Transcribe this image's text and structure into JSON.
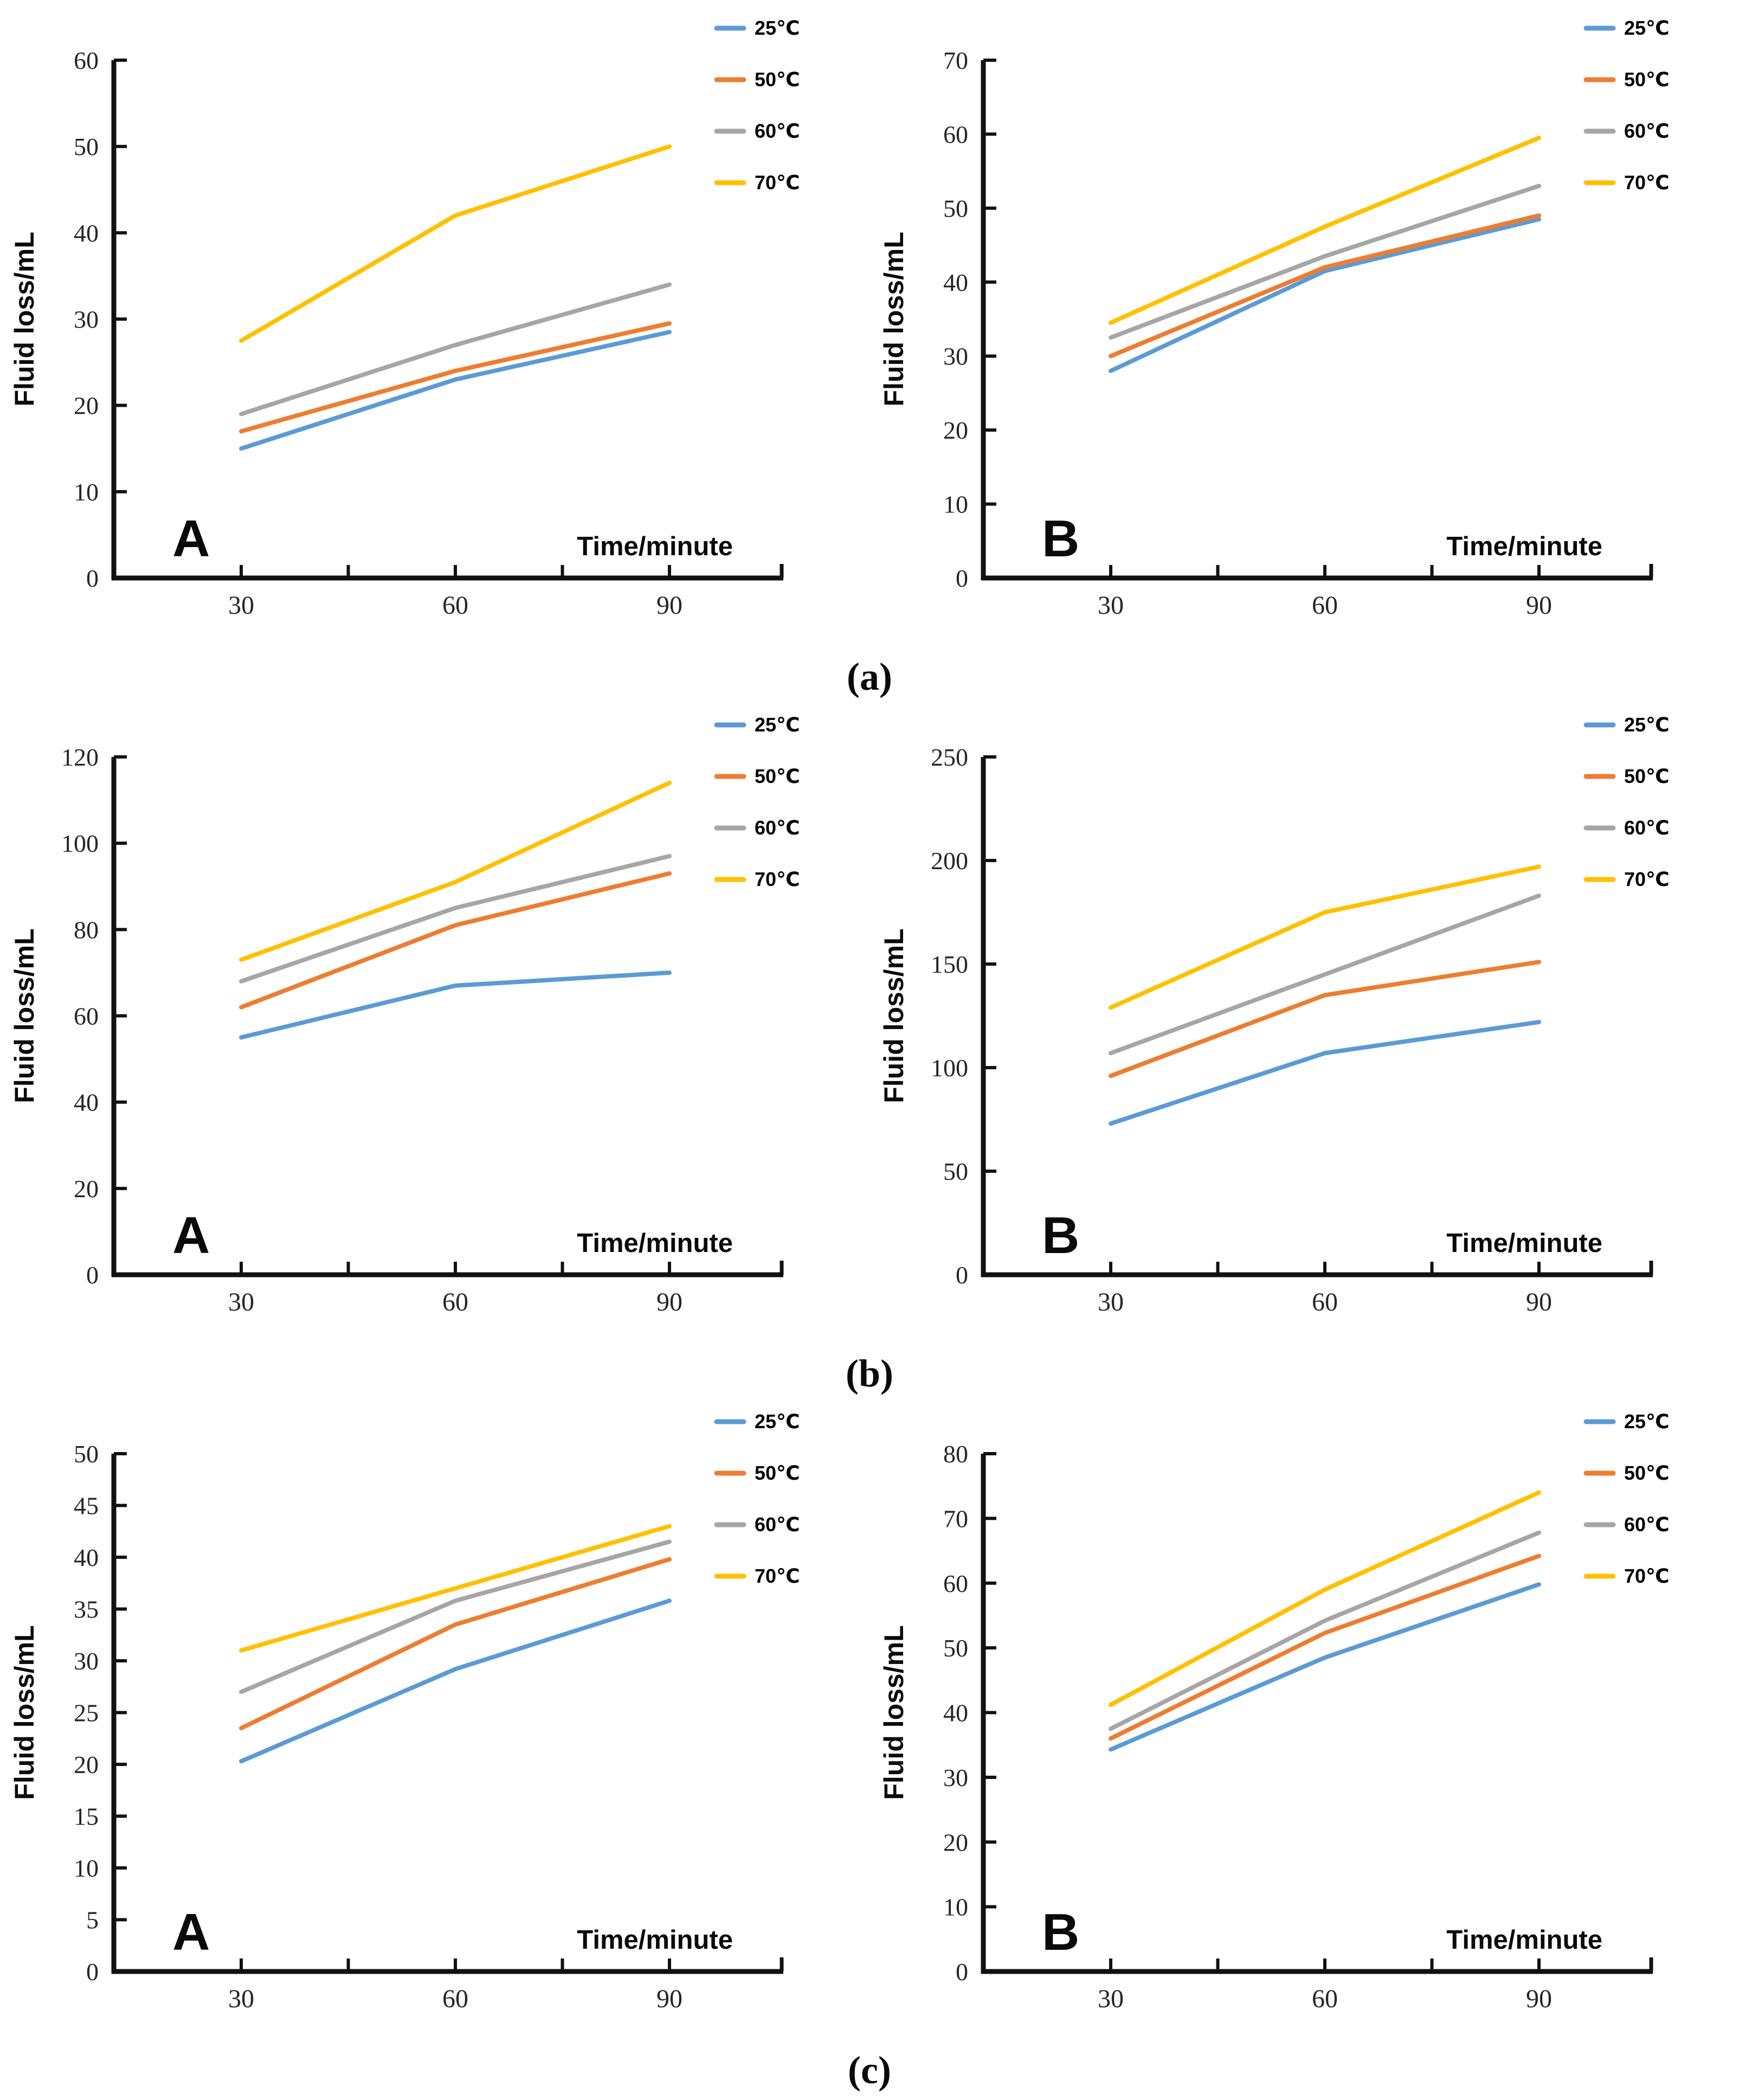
{
  "y_axis_title": "Fluid loss/mL",
  "x_axis_title": "Time/minute",
  "captions": [
    "(a)",
    "(b)",
    "(c)"
  ],
  "colors": {
    "c25": "#5B9BD5",
    "c50": "#ED7D31",
    "c60": "#A6A6A6",
    "c70": "#FFC000",
    "axis": "#111111",
    "tick_text": "#262626",
    "title_text": "#0a0a0a"
  },
  "legend_labels": [
    "25℃",
    "50℃",
    "60℃",
    "70℃"
  ],
  "x_tick_positions": [
    30,
    45,
    60,
    75,
    90
  ],
  "x_tick_labels": [
    30,
    60,
    90
  ],
  "chart_data": [
    {
      "id": "a-A",
      "row": "a",
      "panel_letter": "A",
      "type": "line",
      "x": [
        30,
        60,
        90
      ],
      "xlabel": "Time/minute",
      "ylabel": "Fluid loss/mL",
      "ylim": [
        0,
        60
      ],
      "ystep": 10,
      "grid": false,
      "legend_position": "top-right",
      "series": [
        {
          "name": "25℃",
          "color": "#5B9BD5",
          "values": [
            15,
            23,
            28.5
          ]
        },
        {
          "name": "50℃",
          "color": "#ED7D31",
          "values": [
            17,
            24,
            29.5
          ]
        },
        {
          "name": "60℃",
          "color": "#A6A6A6",
          "values": [
            19,
            27,
            34
          ]
        },
        {
          "name": "70℃",
          "color": "#FFC000",
          "values": [
            27.5,
            42,
            50
          ]
        }
      ]
    },
    {
      "id": "a-B",
      "row": "a",
      "panel_letter": "B",
      "type": "line",
      "x": [
        30,
        60,
        90
      ],
      "xlabel": "Time/minute",
      "ylabel": "Fluid loss/mL",
      "ylim": [
        0,
        70
      ],
      "ystep": 10,
      "grid": false,
      "legend_position": "top-right",
      "series": [
        {
          "name": "25℃",
          "color": "#5B9BD5",
          "values": [
            28,
            41.5,
            48.5
          ]
        },
        {
          "name": "50℃",
          "color": "#ED7D31",
          "values": [
            30,
            42,
            49
          ]
        },
        {
          "name": "60℃",
          "color": "#A6A6A6",
          "values": [
            32.5,
            43.5,
            53
          ]
        },
        {
          "name": "70℃",
          "color": "#FFC000",
          "values": [
            34.5,
            47.5,
            59.5
          ]
        }
      ]
    },
    {
      "id": "b-A",
      "row": "b",
      "panel_letter": "A",
      "type": "line",
      "x": [
        30,
        60,
        90
      ],
      "xlabel": "Time/minute",
      "ylabel": "Fluid loss/mL",
      "ylim": [
        0,
        120
      ],
      "ystep": 20,
      "grid": false,
      "legend_position": "top-right",
      "series": [
        {
          "name": "25℃",
          "color": "#5B9BD5",
          "values": [
            55,
            67,
            70
          ]
        },
        {
          "name": "50℃",
          "color": "#ED7D31",
          "values": [
            62,
            81,
            93
          ]
        },
        {
          "name": "60℃",
          "color": "#A6A6A6",
          "values": [
            68,
            85,
            97
          ]
        },
        {
          "name": "70℃",
          "color": "#FFC000",
          "values": [
            73,
            91,
            114
          ]
        }
      ]
    },
    {
      "id": "b-B",
      "row": "b",
      "panel_letter": "B",
      "type": "line",
      "x": [
        30,
        60,
        90
      ],
      "xlabel": "Time/minute",
      "ylabel": "Fluid loss/mL",
      "ylim": [
        0,
        250
      ],
      "ystep": 50,
      "grid": false,
      "legend_position": "top-right",
      "series": [
        {
          "name": "25℃",
          "color": "#5B9BD5",
          "values": [
            73,
            107,
            122
          ]
        },
        {
          "name": "50℃",
          "color": "#ED7D31",
          "values": [
            96,
            135,
            151
          ]
        },
        {
          "name": "60℃",
          "color": "#A6A6A6",
          "values": [
            107,
            145,
            183
          ]
        },
        {
          "name": "70℃",
          "color": "#FFC000",
          "values": [
            129,
            175,
            197
          ]
        }
      ]
    },
    {
      "id": "c-A",
      "row": "c",
      "panel_letter": "A",
      "type": "line",
      "x": [
        30,
        60,
        90
      ],
      "xlabel": "Time/minute",
      "ylabel": "Fluid loss/mL",
      "ylim": [
        0,
        50
      ],
      "ystep": 5,
      "grid": false,
      "legend_position": "top-right",
      "series": [
        {
          "name": "25℃",
          "color": "#5B9BD5",
          "values": [
            20.3,
            29.2,
            35.8
          ]
        },
        {
          "name": "50℃",
          "color": "#ED7D31",
          "values": [
            23.5,
            33.5,
            39.8
          ]
        },
        {
          "name": "60℃",
          "color": "#A6A6A6",
          "values": [
            27,
            35.8,
            41.5
          ]
        },
        {
          "name": "70℃",
          "color": "#FFC000",
          "values": [
            31,
            37,
            43
          ]
        }
      ]
    },
    {
      "id": "c-B",
      "row": "c",
      "panel_letter": "B",
      "type": "line",
      "x": [
        30,
        60,
        90
      ],
      "xlabel": "Time/minute",
      "ylabel": "Fluid loss/mL",
      "ylim": [
        0,
        80
      ],
      "ystep": 10,
      "grid": false,
      "legend_position": "top-right",
      "series": [
        {
          "name": "25℃",
          "color": "#5B9BD5",
          "values": [
            34.3,
            48.5,
            59.8
          ]
        },
        {
          "name": "50℃",
          "color": "#ED7D31",
          "values": [
            36,
            52.3,
            64.2
          ]
        },
        {
          "name": "60℃",
          "color": "#A6A6A6",
          "values": [
            37.5,
            54.2,
            67.8
          ]
        },
        {
          "name": "70℃",
          "color": "#FFC000",
          "values": [
            41.2,
            59,
            74
          ]
        }
      ]
    }
  ]
}
